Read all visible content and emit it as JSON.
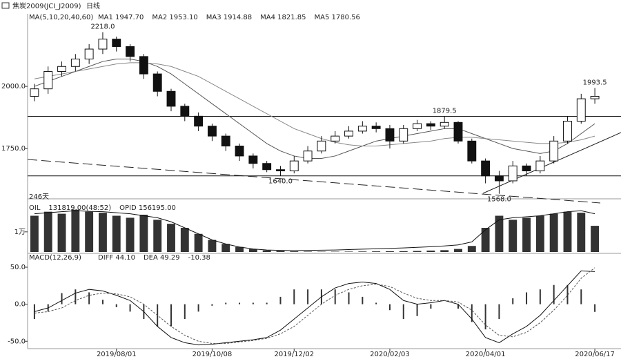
{
  "header": {
    "title": "焦炭2009(JCI_J2009)",
    "period": "日线"
  },
  "chart_data": [
    {
      "type": "candlestick",
      "title": "MA(5,10,20,40,60)",
      "legend": [
        "MA1 1947.70",
        "MA2 1953.10",
        "MA3 1914.88",
        "MA4 1821.85",
        "MA5 1780.56"
      ],
      "ylim": [
        1556,
        2264
      ],
      "yticks": [
        {
          "value": 1750,
          "label": "1750.0"
        },
        {
          "value": 2000,
          "label": "2000.0"
        }
      ],
      "hlines": [
        1879.5,
        1640
      ],
      "note": "246天",
      "annotations": [
        {
          "value": 2218,
          "label": "2218.0"
        },
        {
          "value": 1879.5,
          "label": "1879.5"
        },
        {
          "value": 1640,
          "label": "1640.0"
        },
        {
          "value": 1568,
          "label": "1568.0"
        },
        {
          "value": 1993.5,
          "label": "1993.5"
        }
      ],
      "open": [
        1960,
        1990,
        2060,
        2080,
        2110,
        2150,
        2190,
        2160,
        2120,
        2050,
        1980,
        1920,
        1880,
        1840,
        1800,
        1760,
        1720,
        1690,
        1665,
        1660,
        1700,
        1740,
        1780,
        1800,
        1820,
        1840,
        1830,
        1780,
        1830,
        1850,
        1840,
        1855,
        1780,
        1700,
        1640,
        1620,
        1680,
        1660,
        1700,
        1780,
        1860,
        1950
      ],
      "high": [
        2010,
        2080,
        2100,
        2130,
        2170,
        2218,
        2200,
        2170,
        2130,
        2060,
        1990,
        1930,
        1895,
        1850,
        1810,
        1770,
        1730,
        1700,
        1680,
        1720,
        1760,
        1800,
        1820,
        1840,
        1860,
        1855,
        1845,
        1845,
        1865,
        1860,
        1879.5,
        1860,
        1790,
        1710,
        1660,
        1700,
        1690,
        1720,
        1800,
        1880,
        1970,
        1993.5
      ],
      "low": [
        1940,
        1970,
        2040,
        2060,
        2090,
        2130,
        2140,
        2100,
        2030,
        1960,
        1900,
        1860,
        1820,
        1780,
        1740,
        1700,
        1670,
        1655,
        1640,
        1650,
        1690,
        1730,
        1770,
        1790,
        1810,
        1815,
        1750,
        1770,
        1820,
        1825,
        1830,
        1770,
        1690,
        1610,
        1568,
        1610,
        1640,
        1650,
        1690,
        1770,
        1850,
        1930
      ],
      "close": [
        1990,
        2060,
        2080,
        2110,
        2150,
        2190,
        2160,
        2120,
        2050,
        1980,
        1920,
        1880,
        1840,
        1800,
        1760,
        1720,
        1690,
        1665,
        1660,
        1700,
        1740,
        1780,
        1800,
        1820,
        1840,
        1830,
        1780,
        1830,
        1850,
        1840,
        1855,
        1780,
        1700,
        1640,
        1620,
        1680,
        1660,
        1700,
        1780,
        1860,
        1950,
        1960
      ],
      "lines": [
        {
          "color": "#555555",
          "values": [
            2000,
            2020,
            2040,
            2060,
            2080,
            2100,
            2110,
            2110,
            2100,
            2080,
            2050,
            2010,
            1970,
            1930,
            1890,
            1850,
            1810,
            1770,
            1740,
            1720,
            1710,
            1710,
            1720,
            1740,
            1760,
            1780,
            1790,
            1800,
            1810,
            1820,
            1830,
            1830,
            1810,
            1790,
            1770,
            1750,
            1740,
            1730,
            1740,
            1770,
            1810,
            1850
          ]
        },
        {
          "color": "#888888",
          "values": [
            2030,
            2040,
            2050,
            2060,
            2070,
            2080,
            2090,
            2095,
            2095,
            2090,
            2080,
            2060,
            2040,
            2010,
            1980,
            1950,
            1920,
            1890,
            1860,
            1830,
            1810,
            1790,
            1775,
            1765,
            1760,
            1760,
            1765,
            1770,
            1775,
            1780,
            1790,
            1795,
            1795,
            1790,
            1785,
            1780,
            1775,
            1770,
            1770,
            1775,
            1785,
            1800
          ]
        }
      ]
    },
    {
      "type": "bar",
      "legend": [
        "OIL",
        "131819.00(48:52)",
        "OPID 156195.00"
      ],
      "ylim": [
        0,
        24000
      ],
      "yticks": [
        {
          "value": 10000,
          "label": "1万"
        }
      ],
      "color": "#333333",
      "values": [
        18000,
        20000,
        19000,
        21000,
        20000,
        19500,
        18000,
        17000,
        18500,
        16000,
        14000,
        12000,
        9000,
        6000,
        4000,
        2500,
        1500,
        800,
        500,
        300,
        200,
        150,
        150,
        200,
        250,
        300,
        350,
        400,
        500,
        700,
        900,
        1500,
        3000,
        12000,
        18000,
        16000,
        17000,
        18000,
        19000,
        20000,
        19500,
        13000
      ],
      "line": [
        19000,
        19500,
        20000,
        20500,
        20200,
        20000,
        19500,
        19000,
        18000,
        17000,
        15000,
        12000,
        9000,
        6000,
        4000,
        2500,
        1500,
        1000,
        800,
        700,
        800,
        900,
        1000,
        1200,
        1400,
        1600,
        1800,
        2000,
        2300,
        2600,
        3000,
        3500,
        5000,
        11000,
        16000,
        17000,
        17500,
        18000,
        19000,
        20000,
        20500,
        19000
      ]
    },
    {
      "type": "macd",
      "title": "MACD(12,26,9)",
      "legend": [
        "DIFF 44.10",
        "DEA 49.29",
        "-10.38"
      ],
      "ylim": [
        -60,
        64
      ],
      "yticks": [
        {
          "value": 50,
          "label": "50.0"
        },
        {
          "value": 0,
          "label": "0.0"
        },
        {
          "value": -50,
          "label": "-50.0"
        }
      ],
      "categories": [
        null,
        null,
        null,
        null,
        null,
        null,
        "2019/08/01",
        null,
        null,
        null,
        null,
        null,
        null,
        "2019/10/08",
        null,
        null,
        null,
        null,
        null,
        "2019/12/02",
        null,
        null,
        null,
        null,
        null,
        null,
        "2020/02/03",
        null,
        null,
        null,
        null,
        null,
        null,
        "2020/04/01",
        null,
        null,
        null,
        null,
        null,
        null,
        null,
        "2020/06/17"
      ],
      "diff": [
        -10,
        -5,
        5,
        15,
        20,
        18,
        12,
        5,
        -10,
        -30,
        -45,
        -52,
        -55,
        -54,
        -52,
        -50,
        -48,
        -45,
        -35,
        -20,
        -5,
        10,
        22,
        28,
        30,
        28,
        20,
        5,
        0,
        2,
        5,
        0,
        -20,
        -45,
        -52,
        -40,
        -30,
        -15,
        5,
        25,
        45,
        44.1
      ],
      "dea": [
        -12,
        -10,
        -5,
        5,
        12,
        15,
        14,
        10,
        0,
        -15,
        -30,
        -42,
        -50,
        -53,
        -53,
        -51,
        -49,
        -46,
        -40,
        -30,
        -15,
        0,
        12,
        20,
        25,
        27,
        24,
        15,
        8,
        5,
        5,
        3,
        -8,
        -28,
        -42,
        -44,
        -38,
        -25,
        -8,
        12,
        35,
        49.29
      ],
      "values": [
        -20,
        -10,
        15,
        20,
        16,
        6,
        -4,
        -10,
        -20,
        -30,
        -30,
        -20,
        -10,
        -2,
        2,
        2,
        2,
        2,
        10,
        20,
        20,
        20,
        20,
        16,
        10,
        2,
        -8,
        -20,
        -16,
        -6,
        0,
        -6,
        -24,
        -34,
        -20,
        8,
        16,
        20,
        26,
        26,
        20,
        -10.38
      ]
    }
  ]
}
